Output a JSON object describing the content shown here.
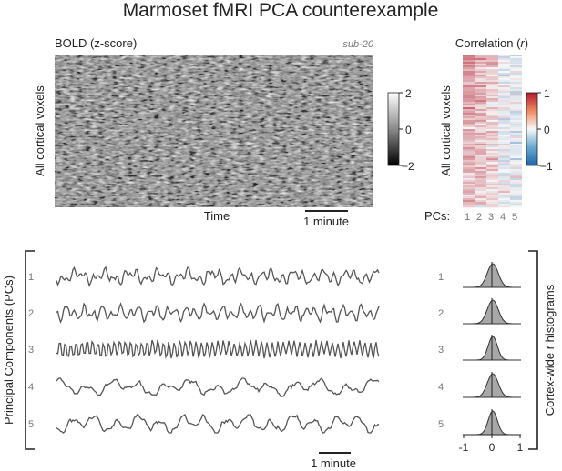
{
  "title": "Marmoset fMRI PCA counterexample",
  "bold_panel": {
    "label": "BOLD (z-score)",
    "subject": "sub-20",
    "ylabel": "All cortical voxels",
    "xlabel": "Time",
    "scalebar_label": "1 minute",
    "colorbar_ticks": [
      "2",
      "0",
      "−2"
    ]
  },
  "corr_panel": {
    "label": "Correlation (",
    "label_r": "r",
    "label_end": ")",
    "ylabel": "All cortical voxels",
    "pcs_label": "PCs:",
    "pc_ticks": [
      "1",
      "2",
      "3",
      "4",
      "5"
    ],
    "colorbar_ticks": [
      "1",
      "0",
      "−1"
    ]
  },
  "pcs_panel": {
    "ylabel": "Principal Components (PCs)",
    "pc_labels": [
      "1",
      "2",
      "3",
      "4",
      "5"
    ],
    "scalebar_label": "1 minute"
  },
  "hist_panel": {
    "ylabel": "Cortex-wide r histograms",
    "pc_labels": [
      "1",
      "2",
      "3",
      "4",
      "5"
    ],
    "xticks": [
      "-1",
      "0",
      "1"
    ]
  }
}
